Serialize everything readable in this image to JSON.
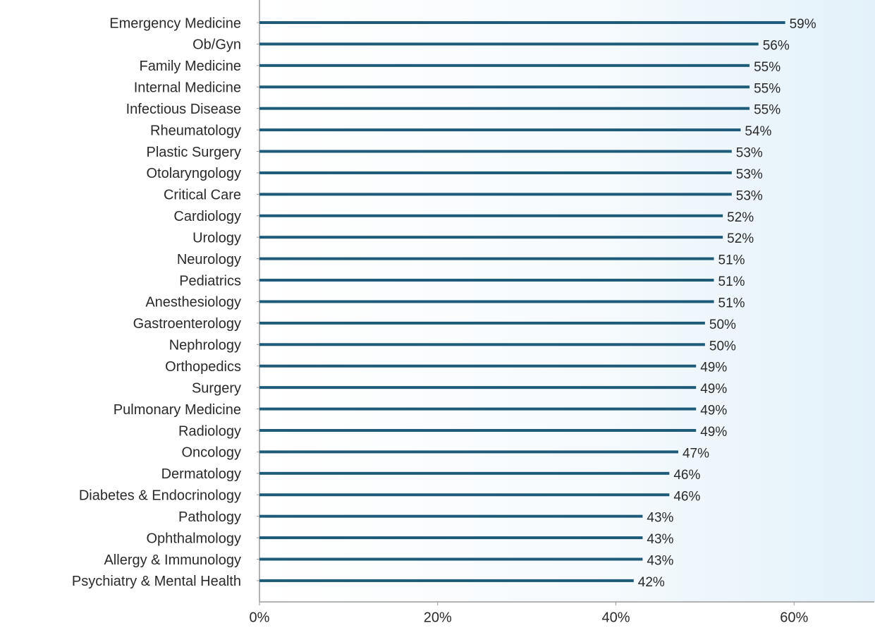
{
  "chart_data": {
    "type": "bar",
    "orientation": "horizontal",
    "categories": [
      "Emergency Medicine",
      "Ob/Gyn",
      "Family Medicine",
      "Internal Medicine",
      "Infectious Disease",
      "Rheumatology",
      "Plastic Surgery",
      "Otolaryngology",
      "Critical Care",
      "Cardiology",
      "Urology",
      "Neurology",
      "Pediatrics",
      "Anesthesiology",
      "Gastroenterology",
      "Nephrology",
      "Orthopedics",
      "Surgery",
      "Pulmonary Medicine",
      "Radiology",
      "Oncology",
      "Dermatology",
      "Diabetes & Endocrinology",
      "Pathology",
      "Ophthalmology",
      "Allergy & Immunology",
      "Psychiatry & Mental Health"
    ],
    "values": [
      59,
      56,
      55,
      55,
      55,
      54,
      53,
      53,
      53,
      52,
      52,
      51,
      51,
      51,
      50,
      50,
      49,
      49,
      49,
      49,
      47,
      46,
      46,
      43,
      43,
      43,
      42
    ],
    "value_labels": [
      "59%",
      "56%",
      "55%",
      "55%",
      "55%",
      "54%",
      "53%",
      "53%",
      "53%",
      "52%",
      "52%",
      "51%",
      "51%",
      "51%",
      "50%",
      "50%",
      "49%",
      "49%",
      "49%",
      "49%",
      "47%",
      "46%",
      "46%",
      "43%",
      "43%",
      "43%",
      "42%"
    ],
    "color": "#1d5b79",
    "xlim": [
      0,
      69
    ],
    "xticks": [
      {
        "value": 0,
        "label": "0%"
      },
      {
        "value": 20,
        "label": "20%"
      },
      {
        "value": 40,
        "label": "40%"
      },
      {
        "value": 60,
        "label": "60%"
      }
    ],
    "grid": false
  }
}
